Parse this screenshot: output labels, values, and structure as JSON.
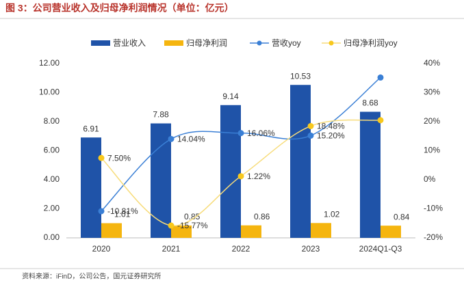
{
  "chart_data": {
    "type": "bar",
    "title": "图 3：公司营业收入及归母净利润情况（单位：亿元）",
    "source": "资料来源：iFinD，公司公告，国元证券研究所",
    "categories": [
      "2020",
      "2021",
      "2022",
      "2023",
      "2024Q1-Q3"
    ],
    "series": [
      {
        "name": "营业收入",
        "type": "bar",
        "color": "#1f53a8",
        "values": [
          6.91,
          7.88,
          9.14,
          10.53,
          8.68
        ]
      },
      {
        "name": "归母净利润",
        "type": "bar",
        "color": "#f5b50f",
        "values": [
          1.01,
          0.85,
          0.86,
          1.02,
          0.84
        ]
      },
      {
        "name": "营收yoy",
        "type": "line",
        "axis": "y2",
        "color": "#3a7fd5",
        "values": [
          -10.81,
          14.04,
          16.06,
          15.2,
          35.2
        ],
        "value_labels": [
          "-10.81%",
          "14.04%",
          "16.06%",
          "15.20%",
          null
        ]
      },
      {
        "name": "归母净利润yoy",
        "type": "line",
        "axis": "y2",
        "color": "#f7dc7a",
        "values": [
          7.5,
          -15.77,
          1.22,
          18.48,
          20.5
        ],
        "value_labels": [
          "7.50%",
          "-15.77%",
          "1.22%",
          "18.48%",
          null
        ]
      }
    ],
    "ylim": [
      0,
      12
    ],
    "yticks": [
      {
        "value": 0,
        "label": "0.00"
      },
      {
        "value": 2,
        "label": "2.00"
      },
      {
        "value": 4,
        "label": "4.00"
      },
      {
        "value": 6,
        "label": "6.00"
      },
      {
        "value": 8,
        "label": "8.00"
      },
      {
        "value": 10,
        "label": "10.00"
      },
      {
        "value": 12,
        "label": "12.00"
      }
    ],
    "y2lim": [
      -20,
      40
    ],
    "y2ticks": [
      {
        "value": -20,
        "label": "-20%"
      },
      {
        "value": -10,
        "label": "-10%"
      },
      {
        "value": 0,
        "label": "0%"
      },
      {
        "value": 10,
        "label": "10%"
      },
      {
        "value": 20,
        "label": "20%"
      },
      {
        "value": 30,
        "label": "30%"
      },
      {
        "value": 40,
        "label": "40%"
      }
    ]
  }
}
